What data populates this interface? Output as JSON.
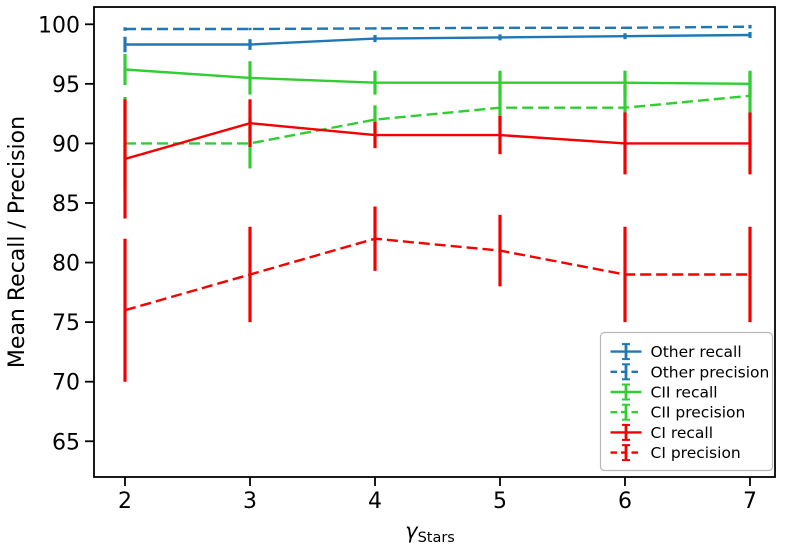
{
  "chart_data": {
    "type": "line",
    "title": "",
    "xlabel_base": "γ",
    "xlabel_sub": "Stars",
    "ylabel": "Mean Recall / Precision",
    "x": [
      2,
      3,
      4,
      5,
      6,
      7
    ],
    "x_ticks": [
      2,
      3,
      4,
      5,
      6,
      7
    ],
    "y_ticks": [
      65,
      70,
      75,
      80,
      85,
      90,
      95,
      100
    ],
    "x_range": [
      1.752,
      7.2
    ],
    "y_range": [
      62.0,
      101.45
    ],
    "grid": false,
    "legend_position": "lower right",
    "series": [
      {
        "name": "Other recall",
        "color": "#1f77b4",
        "style": "solid",
        "values": [
          98.3,
          98.3,
          98.8,
          98.9,
          99.0,
          99.1
        ],
        "errors": [
          0.65,
          0.45,
          0.3,
          0.25,
          0.25,
          0.25
        ]
      },
      {
        "name": "Other precision",
        "color": "#1f77b4",
        "style": "dashed",
        "values": [
          99.6,
          99.6,
          99.65,
          99.7,
          99.7,
          99.8
        ],
        "errors": [
          0.15,
          0.1,
          0.1,
          0.1,
          0.1,
          0.15
        ]
      },
      {
        "name": "CII recall",
        "color": "#32cd32",
        "style": "solid",
        "values": [
          96.2,
          95.5,
          95.1,
          95.1,
          95.1,
          95.0
        ],
        "errors": [
          1.3,
          1.4,
          1.0,
          1.0,
          1.0,
          1.1
        ]
      },
      {
        "name": "CII precision",
        "color": "#32cd32",
        "style": "dashed",
        "values": [
          90.0,
          90.0,
          92.0,
          93.0,
          93.0,
          94.0
        ],
        "errors": [
          3.9,
          2.1,
          1.2,
          1.5,
          1.8,
          2.0
        ]
      },
      {
        "name": "CI recall",
        "color": "#f40000",
        "style": "solid",
        "values": [
          88.7,
          91.7,
          90.7,
          90.7,
          90.0,
          90.0
        ],
        "errors": [
          5.0,
          2.0,
          1.1,
          1.6,
          2.6,
          2.6
        ]
      },
      {
        "name": "CI precision",
        "color": "#f40000",
        "style": "dashed",
        "values": [
          76.0,
          79.0,
          82.0,
          81.0,
          79.0,
          79.0
        ],
        "errors": [
          6.0,
          4.0,
          2.7,
          3.0,
          4.0,
          4.0
        ]
      }
    ],
    "colors": {
      "axis": "#000000",
      "background": "#ffffff",
      "legend_border": "#b8b8b8"
    }
  }
}
